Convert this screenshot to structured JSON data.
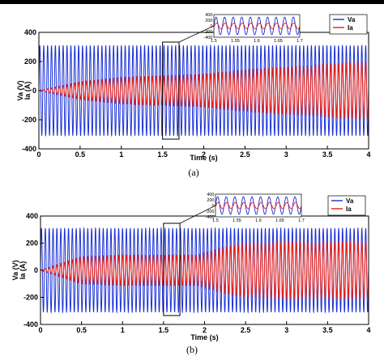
{
  "chart_data": [
    {
      "type": "line",
      "caption": "(a)",
      "xlabel": "Time (s)",
      "ylabel": "Va (V)\nIa (A)",
      "xlim": [
        0,
        4
      ],
      "ylim": [
        -400,
        400
      ],
      "xticks": [
        "0",
        "0.5",
        "1",
        "1.5",
        "2",
        "2.5",
        "3",
        "3.5",
        "4"
      ],
      "yticks": [
        "400",
        "200",
        "0",
        "-200",
        "-400"
      ],
      "legend_position": "top-right",
      "series": [
        {
          "name": "Va",
          "color": "#1a2fd6",
          "amplitude": 310,
          "frequency_hz": 50,
          "envelope_t": [
            0,
            4
          ],
          "envelope_a": [
            310,
            310
          ]
        },
        {
          "name": "Ia",
          "color": "#e8201a",
          "amplitude_profile": "ramp",
          "envelope_t": [
            0,
            0.5,
            1,
            1.5,
            2,
            2.5,
            3,
            3.5,
            4
          ],
          "envelope_a": [
            0,
            60,
            90,
            100,
            110,
            140,
            160,
            180,
            200
          ]
        }
      ],
      "inset": {
        "xlim": [
          1.5,
          1.7
        ],
        "ylim": [
          -400,
          400
        ],
        "xticks": [
          "1.5",
          "1.55",
          "1.6",
          "1.65",
          "1.7"
        ],
        "yticks": [
          "400",
          "200",
          "0",
          "-200",
          "-400"
        ],
        "zoom_region": [
          1.5,
          1.7
        ]
      }
    },
    {
      "type": "line",
      "caption": "(b)",
      "xlabel": "Time (s)",
      "ylabel": "Va (V)\nIa (A)",
      "xlim": [
        0,
        4
      ],
      "ylim": [
        -400,
        400
      ],
      "xticks": [
        "0",
        "0.5",
        "1",
        "1.5",
        "2",
        "2.5",
        "3",
        "3.5",
        "4"
      ],
      "yticks": [
        "400",
        "200",
        "0",
        "-200",
        "-400"
      ],
      "legend_position": "top-right",
      "series": [
        {
          "name": "Va",
          "color": "#1a2fd6",
          "amplitude": 310,
          "frequency_hz": 50,
          "envelope_t": [
            0,
            4
          ],
          "envelope_a": [
            310,
            310
          ]
        },
        {
          "name": "Ia",
          "color": "#e8201a",
          "amplitude_profile": "step",
          "envelope_t": [
            0,
            0.5,
            1,
            1.5,
            1.9,
            2.2,
            2.5,
            3,
            3.5,
            4
          ],
          "envelope_a": [
            0,
            100,
            110,
            110,
            110,
            160,
            200,
            210,
            210,
            210
          ]
        }
      ],
      "inset": {
        "xlim": [
          1.5,
          1.7
        ],
        "ylim": [
          -400,
          400
        ],
        "xticks": [
          "1.5",
          "1.55",
          "1.6",
          "1.65",
          "1.7"
        ],
        "yticks": [
          "400",
          "200",
          "0",
          "-200",
          "-400"
        ],
        "zoom_region": [
          1.5,
          1.7
        ]
      }
    }
  ]
}
